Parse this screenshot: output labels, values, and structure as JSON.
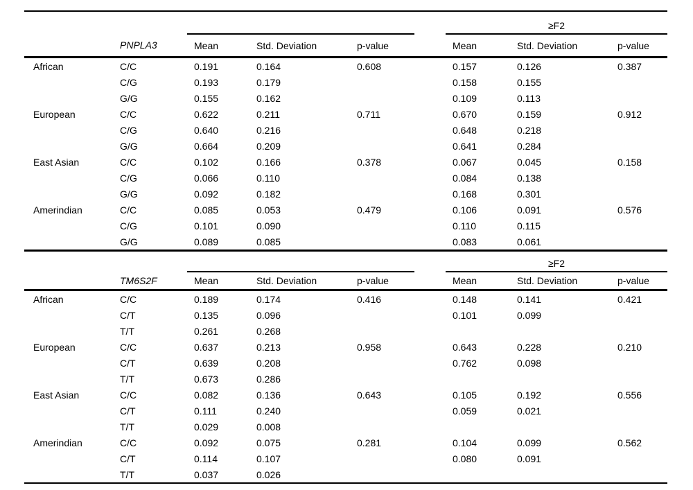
{
  "table": {
    "group2_label": "≥F2",
    "columns": [
      "Mean",
      "Std. Deviation",
      "p-value"
    ],
    "sections": [
      {
        "gene": "PNPLA3",
        "rows": [
          [
            "African",
            "C/C",
            "0.191",
            "0.164",
            "0.608",
            "0.157",
            "0.126",
            "0.387"
          ],
          [
            "",
            "C/G",
            "0.193",
            "0.179",
            "",
            "0.158",
            "0.155",
            ""
          ],
          [
            "",
            "G/G",
            "0.155",
            "0.162",
            "",
            "0.109",
            "0.113",
            ""
          ],
          [
            "European",
            "C/C",
            "0.622",
            "0.211",
            "0.711",
            "0.670",
            "0.159",
            "0.912"
          ],
          [
            "",
            "C/G",
            "0.640",
            "0.216",
            "",
            "0.648",
            "0.218",
            ""
          ],
          [
            "",
            "G/G",
            "0.664",
            "0.209",
            "",
            "0.641",
            "0.284",
            ""
          ],
          [
            "East Asian",
            "C/C",
            "0.102",
            "0.166",
            "0.378",
            "0.067",
            "0.045",
            "0.158"
          ],
          [
            "",
            "C/G",
            "0.066",
            "0.110",
            "",
            "0.084",
            "0.138",
            ""
          ],
          [
            "",
            "G/G",
            "0.092",
            "0.182",
            "",
            "0.168",
            "0.301",
            ""
          ],
          [
            "Amerindian",
            "C/C",
            "0.085",
            "0.053",
            "0.479",
            "0.106",
            "0.091",
            "0.576"
          ],
          [
            "",
            "C/G",
            "0.101",
            "0.090",
            "",
            "0.110",
            "0.115",
            ""
          ],
          [
            "",
            "G/G",
            "0.089",
            "0.085",
            "",
            "0.083",
            "0.061",
            ""
          ]
        ]
      },
      {
        "gene": "TM6S2F",
        "rows": [
          [
            "African",
            "C/C",
            "0.189",
            "0.174",
            "0.416",
            "0.148",
            "0.141",
            "0.421"
          ],
          [
            "",
            "C/T",
            "0.135",
            "0.096",
            "",
            "0.101",
            "0.099",
            ""
          ],
          [
            "",
            "T/T",
            "0.261",
            "0.268",
            "",
            "",
            "",
            ""
          ],
          [
            "European",
            "C/C",
            "0.637",
            "0.213",
            "0.958",
            "0.643",
            "0.228",
            "0.210"
          ],
          [
            "",
            "C/T",
            "0.639",
            "0.208",
            "",
            "0.762",
            "0.098",
            ""
          ],
          [
            "",
            "T/T",
            "0.673",
            "0.286",
            "",
            "",
            "",
            ""
          ],
          [
            "East Asian",
            "C/C",
            "0.082",
            "0.136",
            "0.643",
            "0.105",
            "0.192",
            "0.556"
          ],
          [
            "",
            "C/T",
            "0.111",
            "0.240",
            "",
            "0.059",
            "0.021",
            ""
          ],
          [
            "",
            "T/T",
            "0.029",
            "0.008",
            "",
            "",
            "",
            ""
          ],
          [
            "Amerindian",
            "C/C",
            "0.092",
            "0.075",
            "0.281",
            "0.104",
            "0.099",
            "0.562"
          ],
          [
            "",
            "C/T",
            "0.114",
            "0.107",
            "",
            "0.080",
            "0.091",
            ""
          ],
          [
            "",
            "T/T",
            "0.037",
            "0.026",
            "",
            "",
            "",
            ""
          ]
        ]
      }
    ]
  }
}
